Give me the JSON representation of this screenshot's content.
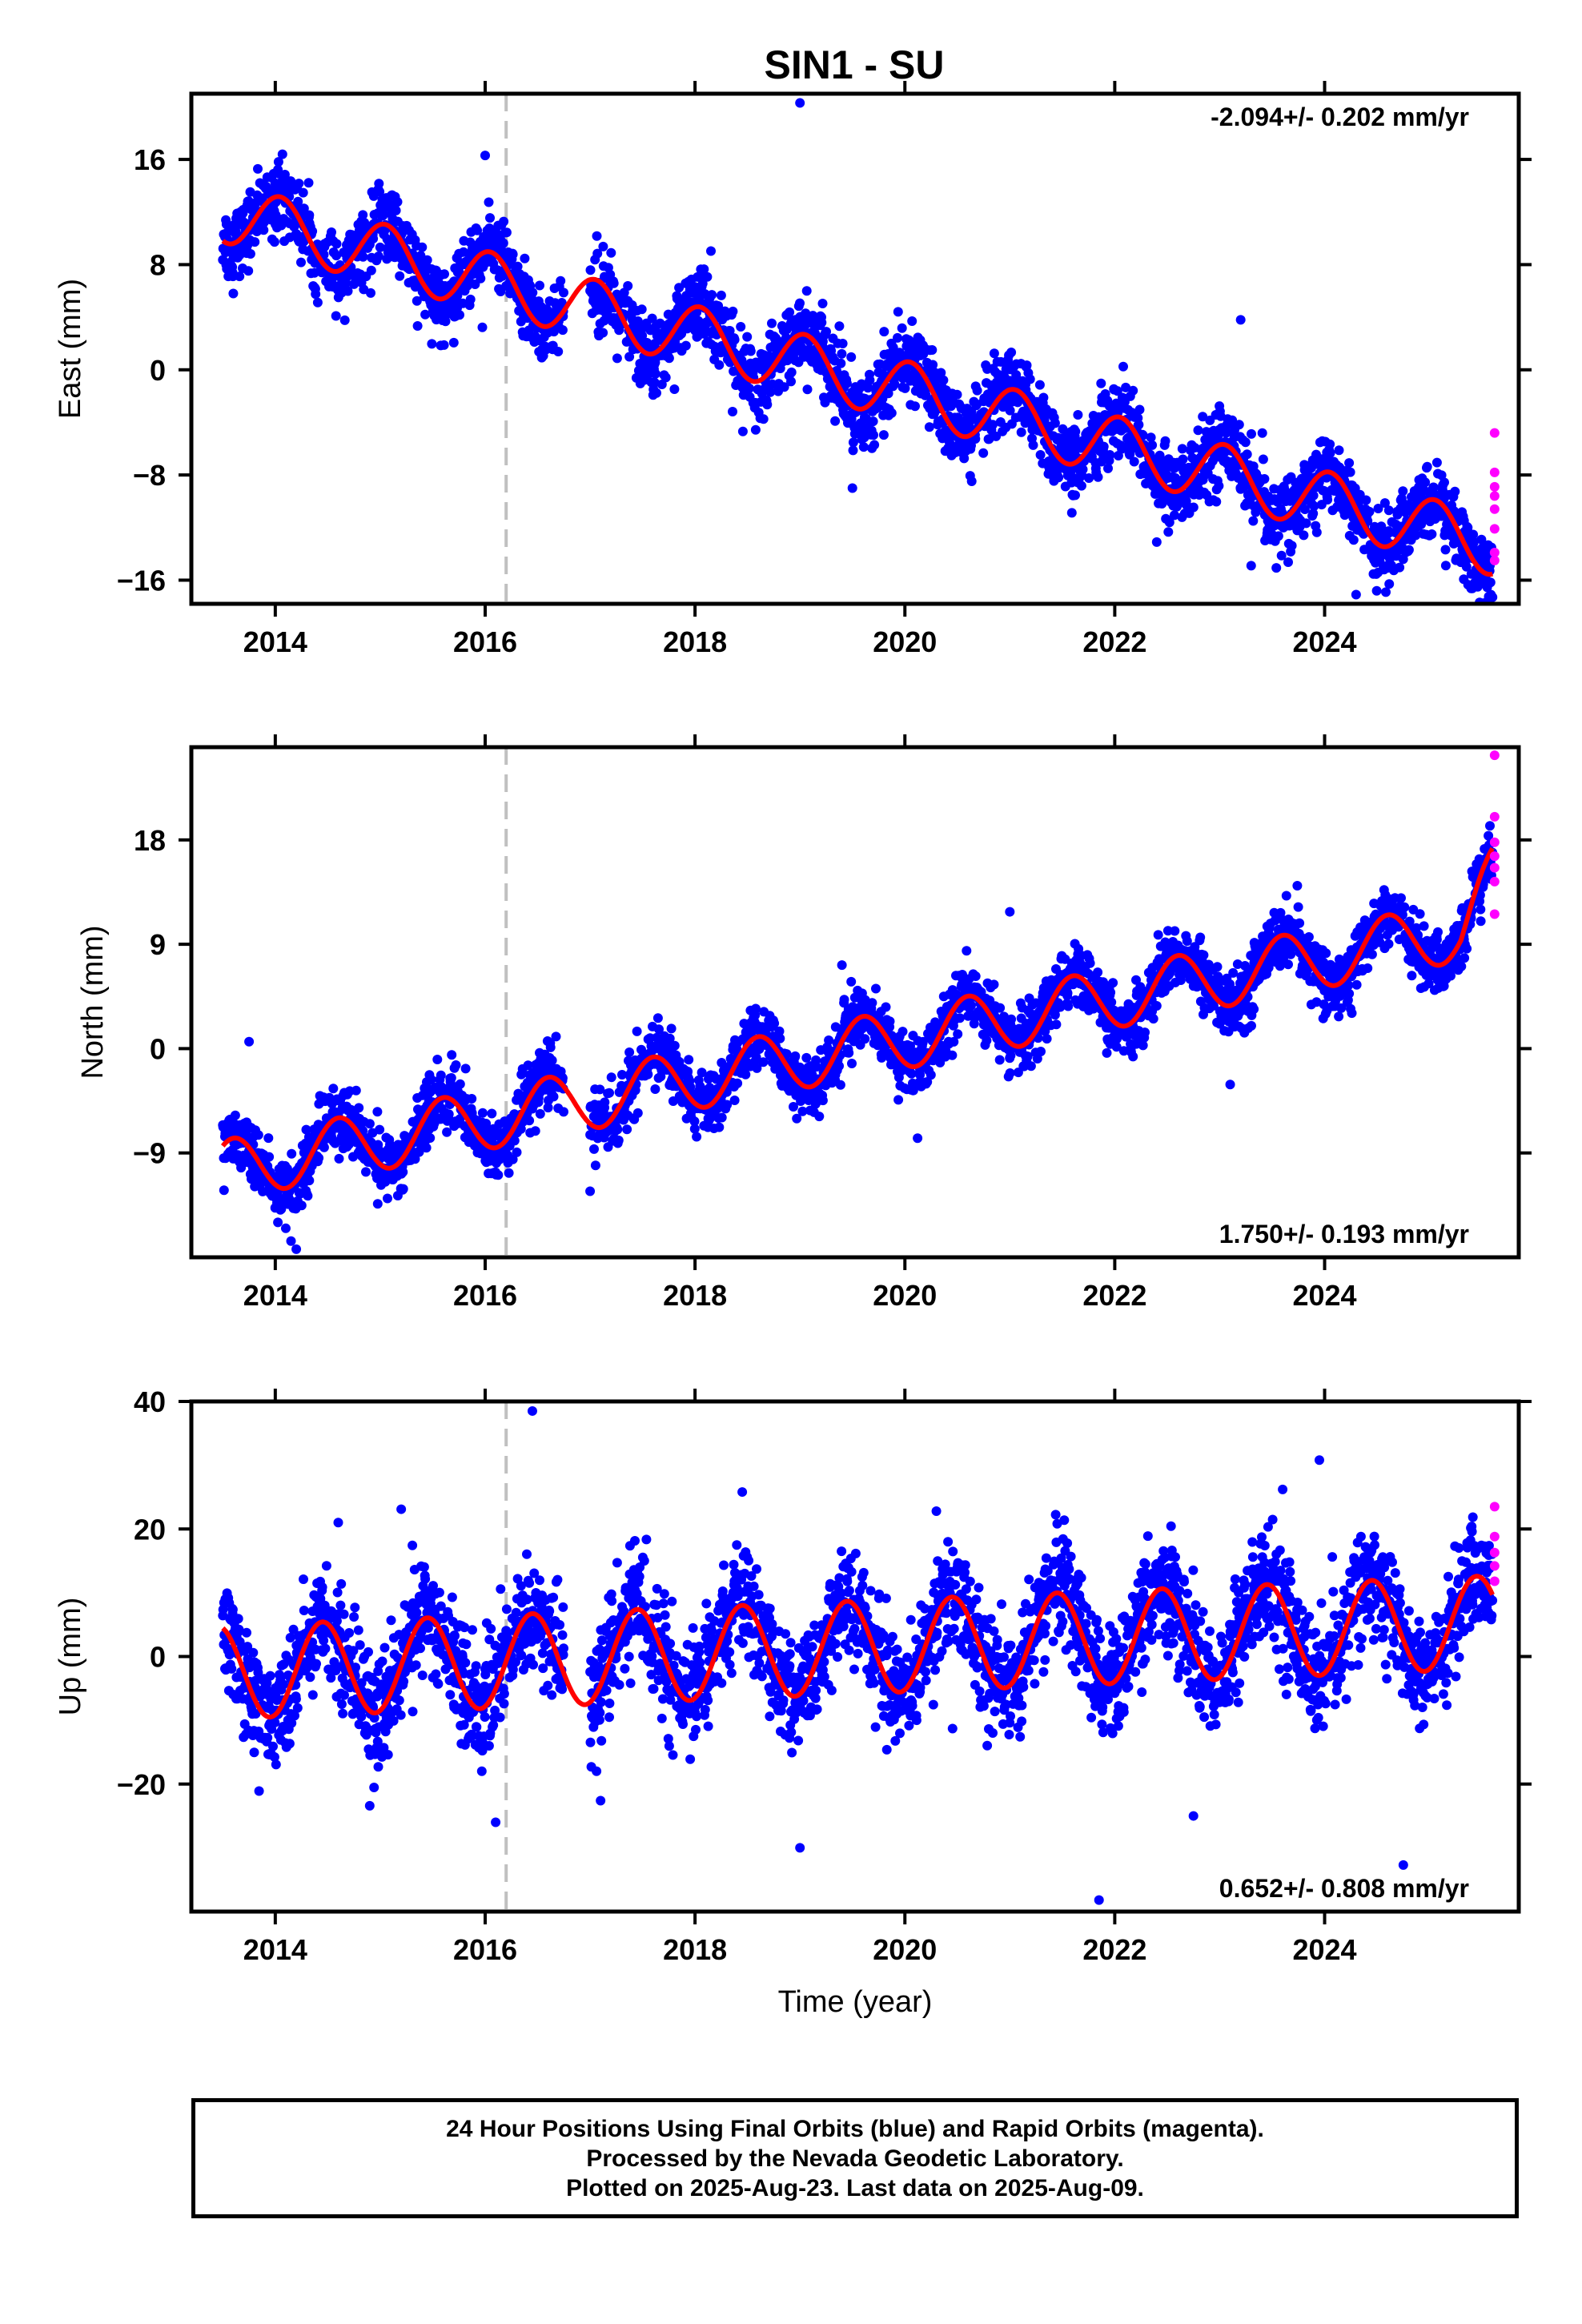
{
  "title": "SIN1 - SU",
  "colors": {
    "final_orbits": "#0000ff",
    "rapid_orbits": "#ff00ff",
    "model_fit": "#ff0000",
    "equipment_change_line": "#c0c0c0"
  },
  "footer": {
    "line1": "24 Hour Positions Using Final Orbits (blue) and Rapid Orbits (magenta).",
    "line2": "Processed by the Nevada Geodetic Laboratory.",
    "line3": "Plotted on 2025-Aug-23. Last data on 2025-Aug-09."
  },
  "chart_data": [
    {
      "type": "scatter",
      "name": "East",
      "ylabel": "East (mm)",
      "xlabel": "",
      "xlim": [
        2013.2,
        2025.85
      ],
      "ylim": [
        -17.8,
        21
      ],
      "xticks": [
        2014,
        2016,
        2018,
        2020,
        2022,
        2024
      ],
      "yticks": [
        16,
        8,
        0,
        -8,
        -16
      ],
      "ytick_labels": [
        "16",
        "8",
        "0",
        "−8",
        "−16"
      ],
      "rate_label": "-2.094+/- 0.202 mm/yr",
      "rate_label_position": "top-right",
      "rate_mm_per_yr": -2.094,
      "rate_sigma": 0.202,
      "equipment_change_year": 2016.2,
      "data_gap": [
        2016.75,
        2017.0
      ],
      "model": {
        "t0": 2013.5,
        "offset": 12.0,
        "rate": -2.094,
        "annual_amp": 2.3,
        "annual_phase_year": 2014.05,
        "end_year": 2025.6
      },
      "scatter_sd": 1.4,
      "outliers_final": [
        [
          2019.0,
          20.3
        ],
        [
          2016.0,
          16.3
        ],
        [
          2024.3,
          -17.1
        ],
        [
          2025.6,
          -17.3
        ],
        [
          2019.5,
          -9.0
        ],
        [
          2023.3,
          -14.9
        ],
        [
          2022.4,
          -13.1
        ],
        [
          2013.6,
          5.8
        ],
        [
          2023.2,
          3.8
        ]
      ],
      "rapid_points": [
        [
          2025.62,
          -4.8
        ],
        [
          2025.62,
          -7.8
        ],
        [
          2025.62,
          -8.9
        ],
        [
          2025.62,
          -9.6
        ],
        [
          2025.62,
          -10.6
        ],
        [
          2025.62,
          -12.1
        ],
        [
          2025.62,
          -13.9
        ],
        [
          2025.62,
          -14.5
        ]
      ]
    },
    {
      "type": "scatter",
      "name": "North",
      "ylabel": "North (mm)",
      "xlabel": "",
      "xlim": [
        2013.2,
        2025.85
      ],
      "ylim": [
        -18,
        26
      ],
      "xticks": [
        2014,
        2016,
        2018,
        2020,
        2022,
        2024
      ],
      "yticks": [
        18,
        9,
        0,
        -9
      ],
      "ytick_labels": [
        "18",
        "9",
        "0",
        "−9"
      ],
      "rate_label": "1.750+/- 0.193 mm/yr",
      "rate_label_position": "bottom-right",
      "rate_mm_per_yr": 1.75,
      "rate_sigma": 0.193,
      "equipment_change_year": 2016.2,
      "data_gap": [
        2016.75,
        2017.0
      ],
      "model": {
        "t0": 2013.5,
        "offset": -10.5,
        "rate": 1.75,
        "annual_amp": 2.6,
        "annual_phase_year": 2014.6,
        "end_year": 2025.6,
        "late_ramp": [
          2025.3,
          4.0
        ]
      },
      "scatter_sd": 1.3,
      "outliers_final": [
        [
          2013.75,
          0.6
        ],
        [
          2014.15,
          -16.6
        ],
        [
          2014.2,
          -17.3
        ],
        [
          2014.1,
          -15.5
        ],
        [
          2019.4,
          7.2
        ],
        [
          2021.0,
          11.8
        ],
        [
          2023.1,
          -3.1
        ],
        [
          2017.0,
          -12.3
        ]
      ],
      "rapid_points": [
        [
          2025.62,
          25.3
        ],
        [
          2025.62,
          20.0
        ],
        [
          2025.62,
          17.8
        ],
        [
          2025.62,
          16.6
        ],
        [
          2025.62,
          15.6
        ],
        [
          2025.62,
          14.4
        ],
        [
          2025.62,
          11.6
        ]
      ]
    },
    {
      "type": "scatter",
      "name": "Up",
      "ylabel": "Up (mm)",
      "xlabel": "Time (year)",
      "xlim": [
        2013.2,
        2025.85
      ],
      "ylim": [
        -40,
        40
      ],
      "xticks": [
        2014,
        2016,
        2018,
        2020,
        2022,
        2024
      ],
      "yticks": [
        40,
        20,
        0,
        -20
      ],
      "ytick_labels": [
        "40",
        "20",
        "0",
        "−20"
      ],
      "rate_label": "0.652+/- 0.808 mm/yr",
      "rate_label_position": "bottom-right",
      "rate_mm_per_yr": 0.652,
      "rate_sigma": 0.808,
      "equipment_change_year": 2016.2,
      "data_gap": [
        2016.75,
        2017.0
      ],
      "model": {
        "t0": 2013.5,
        "offset": -2.5,
        "rate": 0.652,
        "annual_amp": 7.3,
        "annual_phase_year": 2014.45,
        "end_year": 2025.6
      },
      "scatter_sd": 4.3,
      "outliers_final": [
        [
          2016.45,
          38.5
        ],
        [
          2019.0,
          -30.0
        ],
        [
          2021.85,
          -38.2
        ],
        [
          2024.75,
          -32.7
        ],
        [
          2016.1,
          -26.0
        ],
        [
          2022.75,
          -25.0
        ],
        [
          2018.45,
          25.8
        ],
        [
          2023.95,
          30.8
        ],
        [
          2023.6,
          26.2
        ],
        [
          2015.2,
          23.1
        ],
        [
          2014.9,
          -23.4
        ],
        [
          2014.6,
          21.0
        ],
        [
          2020.3,
          22.8
        ],
        [
          2017.1,
          -22.6
        ]
      ],
      "rapid_points": [
        [
          2025.62,
          23.5
        ],
        [
          2025.62,
          18.8
        ],
        [
          2025.62,
          16.3
        ],
        [
          2025.62,
          14.2
        ],
        [
          2025.62,
          11.8
        ]
      ]
    }
  ]
}
